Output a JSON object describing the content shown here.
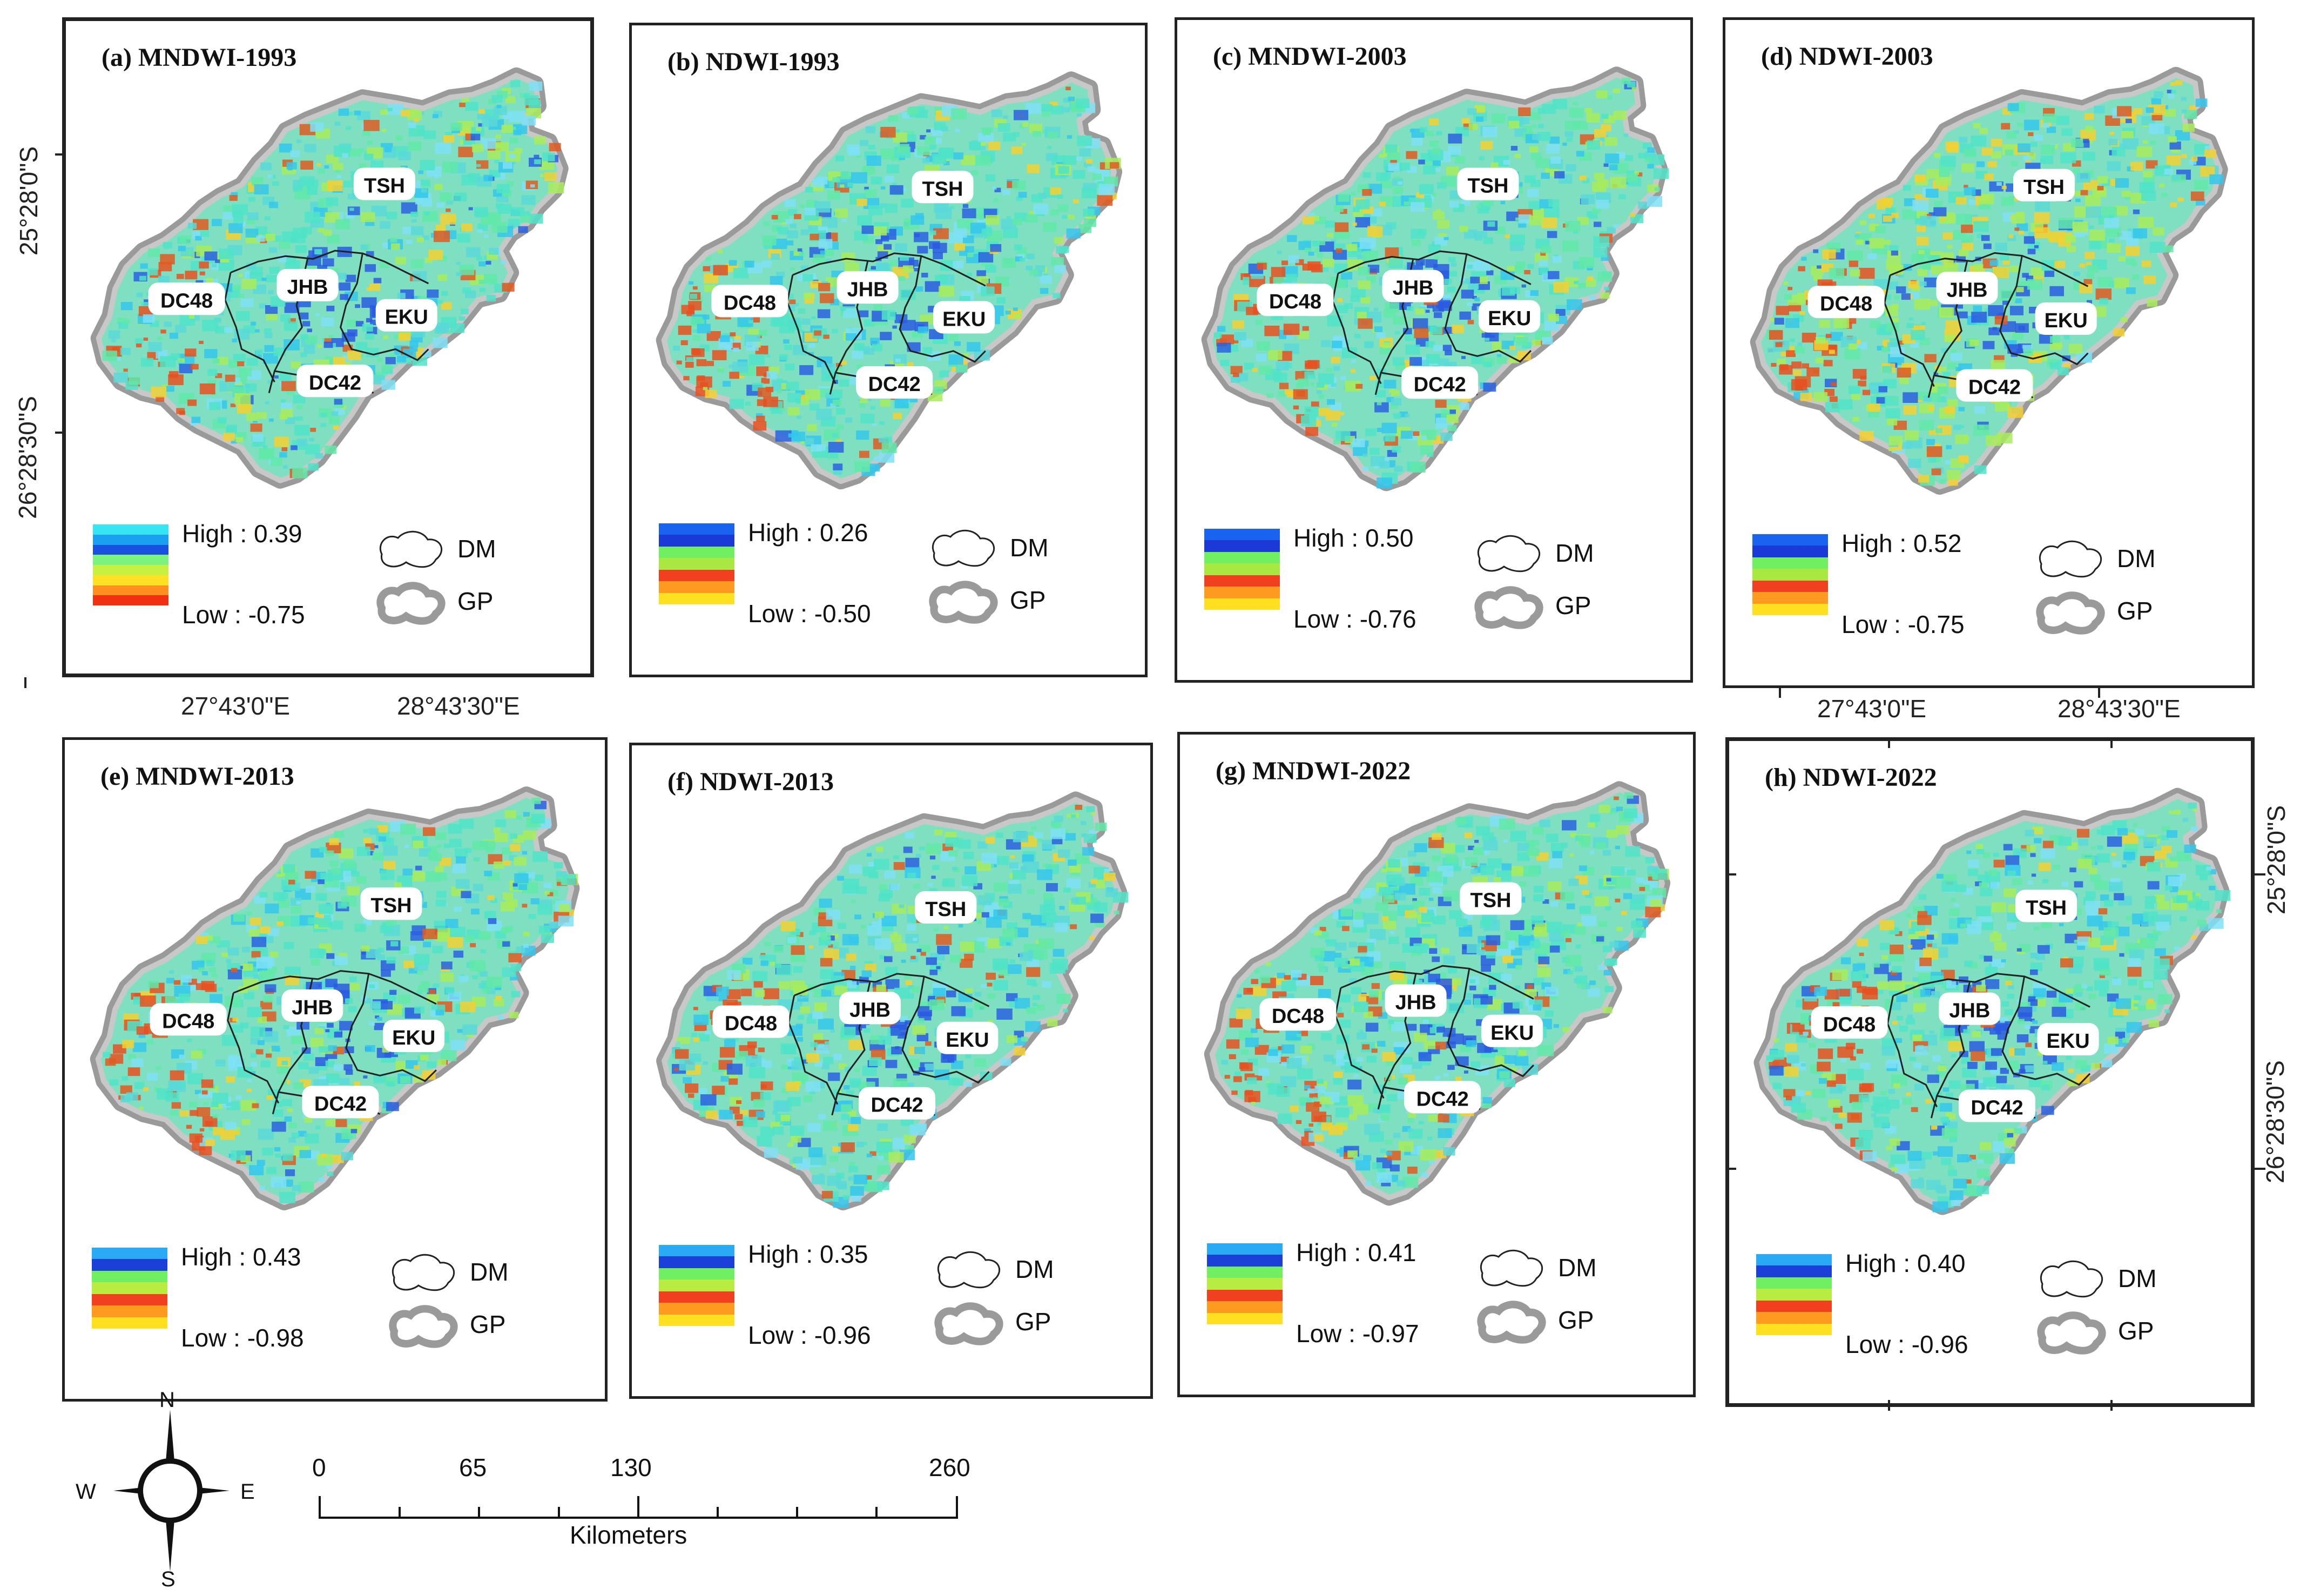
{
  "figure": {
    "panels": [
      {
        "title": "(a) MNDWI-1993",
        "high": "High : 0.39",
        "low": "Low : -0.75",
        "ramp": "A",
        "labels": {
          "tsh": "TSH",
          "jhb": "JHB",
          "eku": "EKU",
          "dc48": "DC48",
          "dc42": "DC42"
        }
      },
      {
        "title": "(b) NDWI-1993",
        "high": "High : 0.26",
        "low": "Low : -0.50",
        "ramp": "B",
        "labels": {
          "tsh": "TSH",
          "jhb": "JHB",
          "eku": "EKU",
          "dc48": "DC48",
          "dc42": "DC42"
        }
      },
      {
        "title": "(c) MNDWI-2003",
        "high": "High : 0.50",
        "low": "Low : -0.76",
        "ramp": "B",
        "labels": {
          "tsh": "TSH",
          "jhb": "JHB",
          "eku": "EKU",
          "dc48": "DC48",
          "dc42": "DC42"
        }
      },
      {
        "title": "(d) NDWI-2003",
        "high": "High : 0.52",
        "low": "Low : -0.75",
        "ramp": "B",
        "labels": {
          "tsh": "TSH",
          "jhb": "JHB",
          "eku": "EKU",
          "dc48": "DC48",
          "dc42": "DC42"
        }
      },
      {
        "title": "(e) MNDWI-2013",
        "high": "High : 0.43",
        "low": "Low : -0.98",
        "ramp": "C",
        "labels": {
          "tsh": "TSH",
          "jhb": "JHB",
          "eku": "EKU",
          "dc48": "DC48",
          "dc42": "DC42"
        }
      },
      {
        "title": "(f) NDWI-2013",
        "high": "High : 0.35",
        "low": "Low : -0.96",
        "ramp": "C",
        "labels": {
          "tsh": "TSH",
          "jhb": "JHB",
          "eku": "EKU",
          "dc48": "DC48",
          "dc42": "DC42"
        }
      },
      {
        "title": "(g) MNDWI-2022",
        "high": "High : 0.41",
        "low": "Low : -0.97",
        "ramp": "C",
        "labels": {
          "tsh": "TSH",
          "jhb": "JHB",
          "eku": "EKU",
          "dc48": "DC48",
          "dc42": "DC42"
        }
      },
      {
        "title": "(h) NDWI-2022",
        "high": "High : 0.40",
        "low": "Low : -0.96",
        "ramp": "C",
        "labels": {
          "tsh": "TSH",
          "jhb": "JHB",
          "eku": "EKU",
          "dc48": "DC48",
          "dc42": "DC42"
        }
      }
    ],
    "legend": {
      "dm": "DM",
      "gp": "GP"
    },
    "coords": {
      "lat_top": "25°28'0\"S",
      "lat_bottom": "26°28'30\"S",
      "lon_left": "27°43'0\"E",
      "lon_right": "28°43'30\"E"
    },
    "north_arrow": {
      "n": "N",
      "s": "S",
      "e": "E",
      "w": "W"
    },
    "scale_bar": {
      "ticks": [
        "0",
        "65",
        "130",
        "260"
      ],
      "unit": "Kilometers"
    },
    "colors": {
      "ramp_A": [
        "#35e6f2",
        "#1aa0f0",
        "#1950e0",
        "#7cf27f",
        "#c8f040",
        "#ffe022",
        "#ff9020",
        "#f03010"
      ],
      "ramp_B": [
        "#1a62f0",
        "#1a3ad8",
        "#70f060",
        "#a8e840",
        "#f04020",
        "#ff9a20",
        "#ffe020"
      ],
      "ramp_C": [
        "#2aaaf4",
        "#1a40d8",
        "#70f060",
        "#b8ec40",
        "#f04020",
        "#ff9a20",
        "#ffe020"
      ]
    }
  }
}
